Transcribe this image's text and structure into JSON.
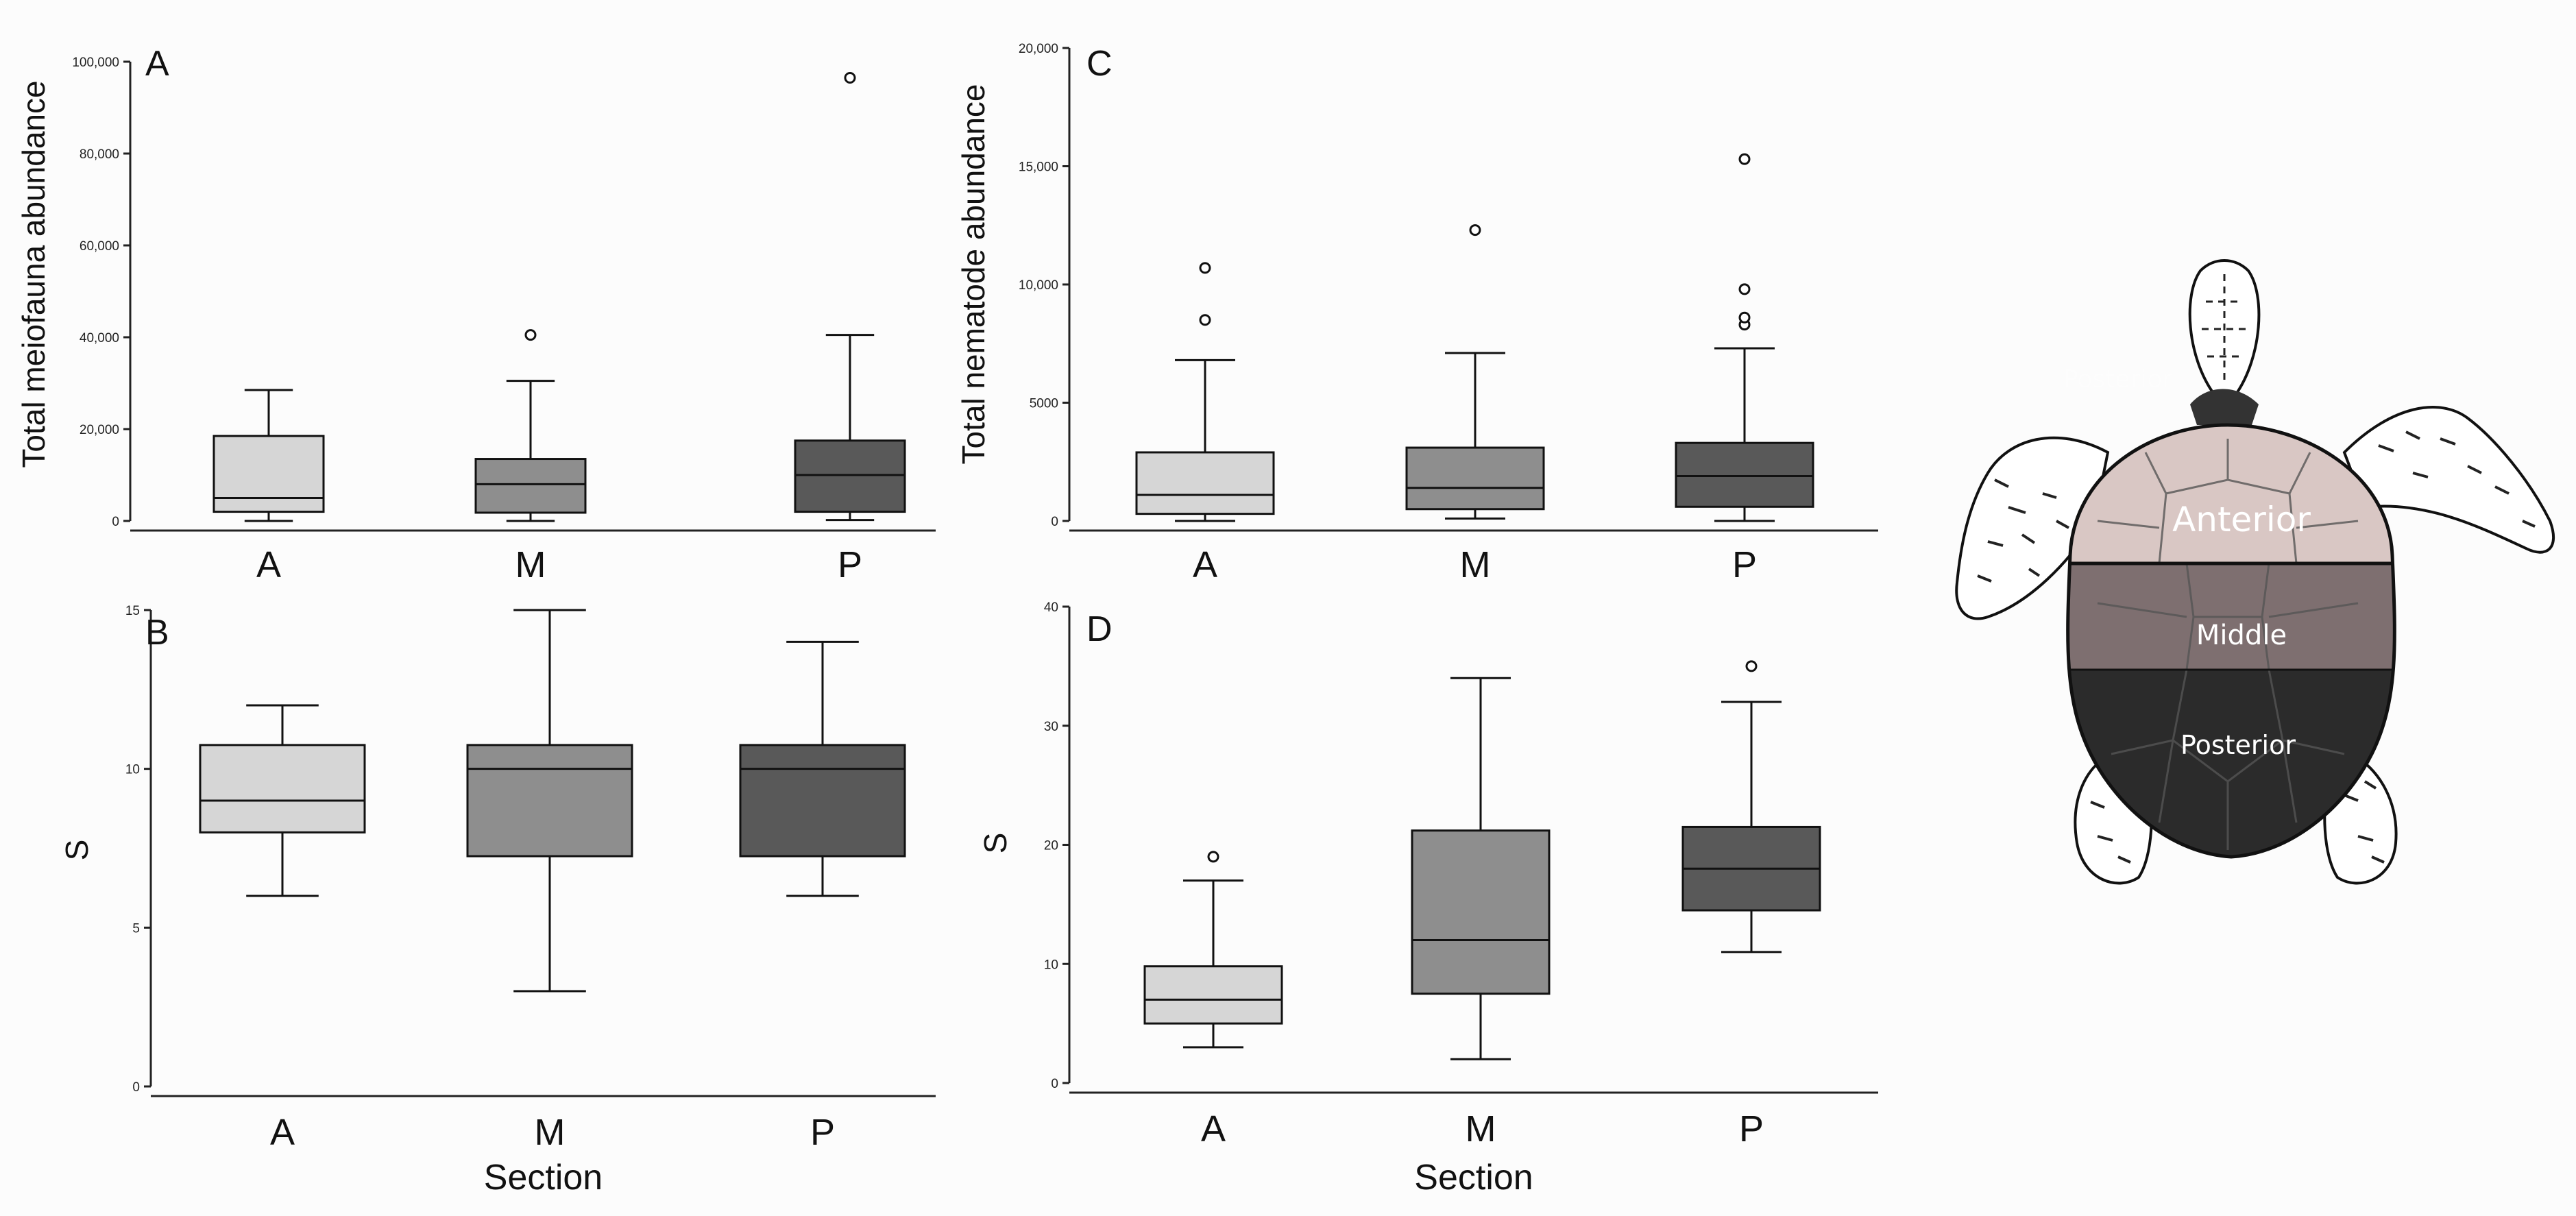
{
  "chart_data": [
    {
      "panel": "A",
      "type": "boxplot",
      "ylabel": "Total meiofauna abundance",
      "xlabel": "",
      "ylim": [
        0,
        100000
      ],
      "yticks": [
        "0",
        "20,000",
        "40,000",
        "60,000",
        "80,000",
        "100,000"
      ],
      "categories": [
        "A",
        "M",
        "P"
      ],
      "colors": [
        "#d6d6d6",
        "#8e8e8e",
        "#595959"
      ],
      "series": [
        {
          "name": "A",
          "whisker_low": 0,
          "q1": 2000,
          "median": 5000,
          "q3": 18500,
          "whisker_high": 28500,
          "outliers": []
        },
        {
          "name": "M",
          "whisker_low": 0,
          "q1": 1800,
          "median": 8000,
          "q3": 13500,
          "whisker_high": 30500,
          "outliers": [
            40500
          ]
        },
        {
          "name": "P",
          "whisker_low": 200,
          "q1": 2000,
          "median": 10000,
          "q3": 17500,
          "whisker_high": 40500,
          "outliers": [
            96500
          ]
        }
      ]
    },
    {
      "panel": "B",
      "type": "boxplot",
      "ylabel": "S",
      "xlabel": "Section",
      "ylim": [
        0,
        15
      ],
      "yticks": [
        "0",
        "5",
        "10",
        "15"
      ],
      "categories": [
        "A",
        "M",
        "P"
      ],
      "colors": [
        "#d6d6d6",
        "#8e8e8e",
        "#595959"
      ],
      "series": [
        {
          "name": "A",
          "whisker_low": 6,
          "q1": 8,
          "median": 9,
          "q3": 10.75,
          "whisker_high": 12,
          "outliers": []
        },
        {
          "name": "M",
          "whisker_low": 3,
          "q1": 7.25,
          "median": 10,
          "q3": 10.75,
          "whisker_high": 15,
          "outliers": []
        },
        {
          "name": "P",
          "whisker_low": 6,
          "q1": 7.25,
          "median": 10,
          "q3": 10.75,
          "whisker_high": 14,
          "outliers": []
        }
      ]
    },
    {
      "panel": "C",
      "type": "boxplot",
      "ylabel": "Total nematode abundance",
      "xlabel": "",
      "ylim": [
        0,
        20000
      ],
      "yticks": [
        "0",
        "5000",
        "10,000",
        "15,000",
        "20,000"
      ],
      "categories": [
        "A",
        "M",
        "P"
      ],
      "colors": [
        "#d6d6d6",
        "#8e8e8e",
        "#595959"
      ],
      "series": [
        {
          "name": "A",
          "whisker_low": 0,
          "q1": 300,
          "median": 1100,
          "q3": 2900,
          "whisker_high": 6800,
          "outliers": [
            8500,
            10700
          ]
        },
        {
          "name": "M",
          "whisker_low": 100,
          "q1": 500,
          "median": 1400,
          "q3": 3100,
          "whisker_high": 7100,
          "outliers": [
            12300
          ]
        },
        {
          "name": "P",
          "whisker_low": 0,
          "q1": 600,
          "median": 1900,
          "q3": 3300,
          "whisker_high": 7300,
          "outliers": [
            8300,
            8600,
            9800,
            15300
          ]
        }
      ]
    },
    {
      "panel": "D",
      "type": "boxplot",
      "ylabel": "S",
      "xlabel": "Section",
      "ylim": [
        0,
        40
      ],
      "yticks": [
        "0",
        "10",
        "20",
        "30",
        "40"
      ],
      "categories": [
        "A",
        "M",
        "P"
      ],
      "colors": [
        "#d6d6d6",
        "#8e8e8e",
        "#595959"
      ],
      "series": [
        {
          "name": "A",
          "whisker_low": 3,
          "q1": 5,
          "median": 7,
          "q3": 9.8,
          "whisker_high": 17,
          "outliers": [
            19
          ]
        },
        {
          "name": "M",
          "whisker_low": 2,
          "q1": 7.5,
          "median": 12,
          "q3": 21.2,
          "whisker_high": 34,
          "outliers": []
        },
        {
          "name": "P",
          "whisker_low": 11,
          "q1": 14.5,
          "median": 18,
          "q3": 21.5,
          "whisker_high": 32,
          "outliers": [
            35
          ]
        }
      ]
    }
  ],
  "turtle": {
    "labels": {
      "anterior": "Anterior",
      "middle": "Middle",
      "posterior": "Posterior",
      "faint": "Posterior"
    },
    "colors": {
      "anterior": "#d9c7c4",
      "middle": "#7e6f70",
      "posterior": "#2b2b2b"
    }
  }
}
